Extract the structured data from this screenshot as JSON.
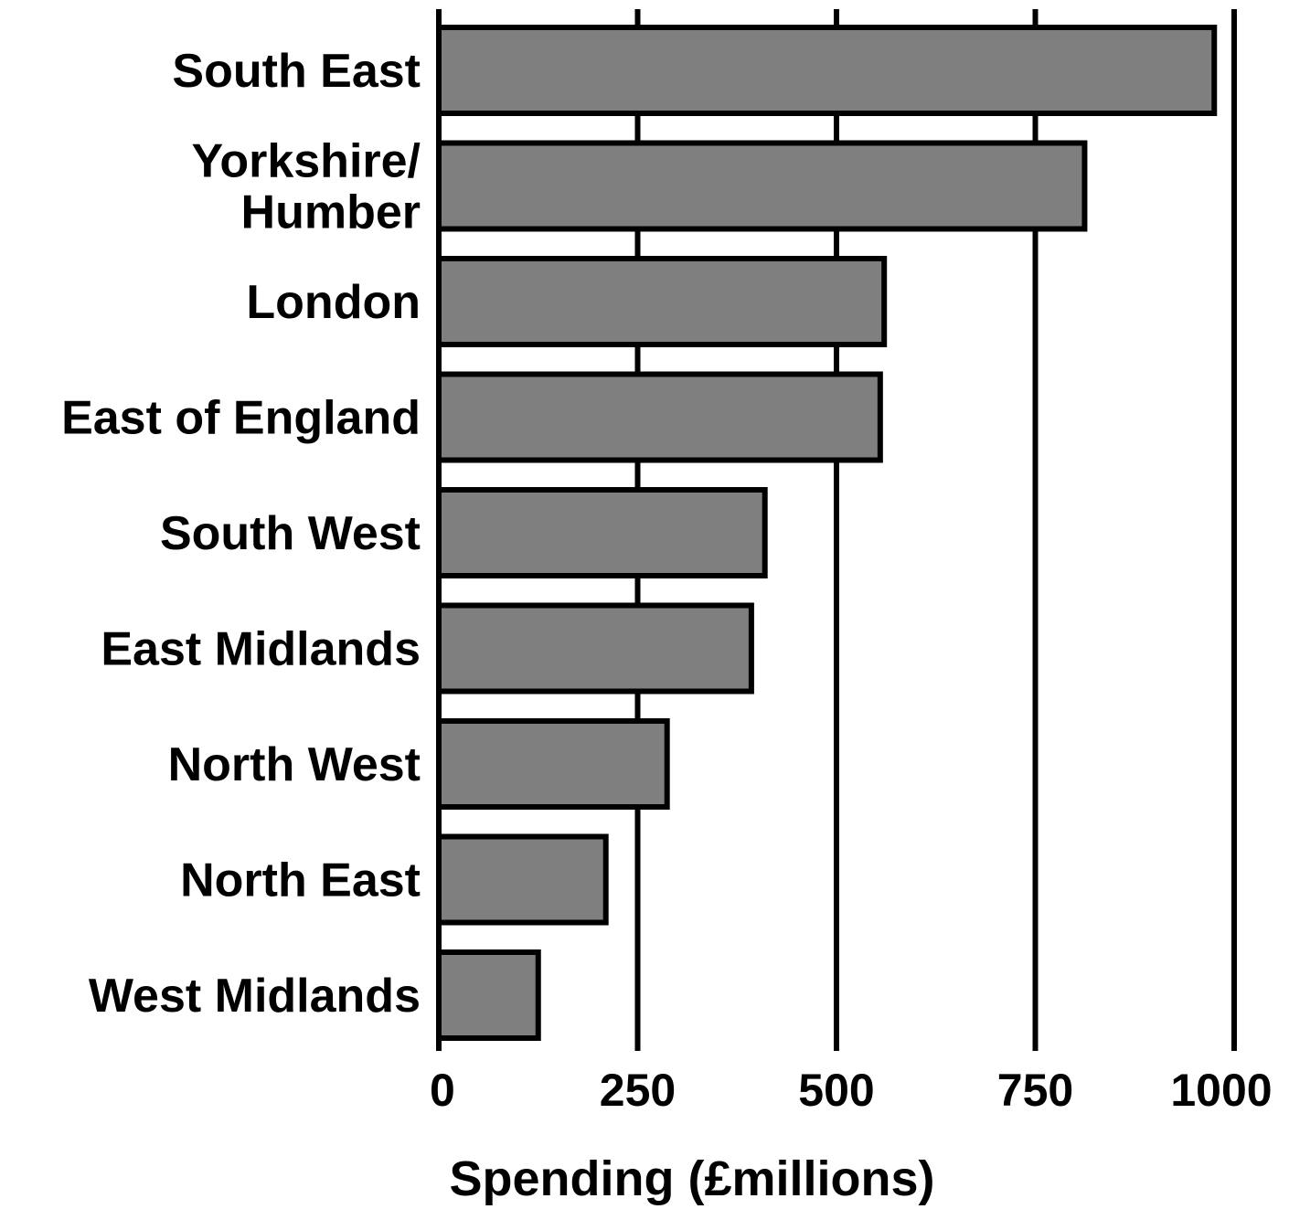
{
  "chart_data": {
    "type": "bar",
    "orientation": "horizontal",
    "categories": [
      [
        "South East"
      ],
      [
        "Yorkshire/",
        "Humber"
      ],
      [
        "London"
      ],
      [
        "East of England"
      ],
      [
        "South West"
      ],
      [
        "East Midlands"
      ],
      [
        "North West"
      ],
      [
        "North East"
      ],
      [
        "West Midlands"
      ]
    ],
    "values": [
      975,
      812,
      560,
      555,
      410,
      393,
      287,
      210,
      125
    ],
    "xlabel": "Spending (£millions)",
    "ylabel": "",
    "xlim": [
      0,
      1000
    ],
    "xticks": [
      0,
      250,
      500,
      750,
      1000
    ],
    "xtick_labels": [
      "0",
      "250",
      "500",
      "750",
      "1000"
    ],
    "grid": "vertical",
    "legend": "none"
  },
  "colors": {
    "bar_fill": "#7f7f7f",
    "bar_stroke": "#000000",
    "gridline": "#000000",
    "text": "#000000",
    "background": "#ffffff"
  }
}
